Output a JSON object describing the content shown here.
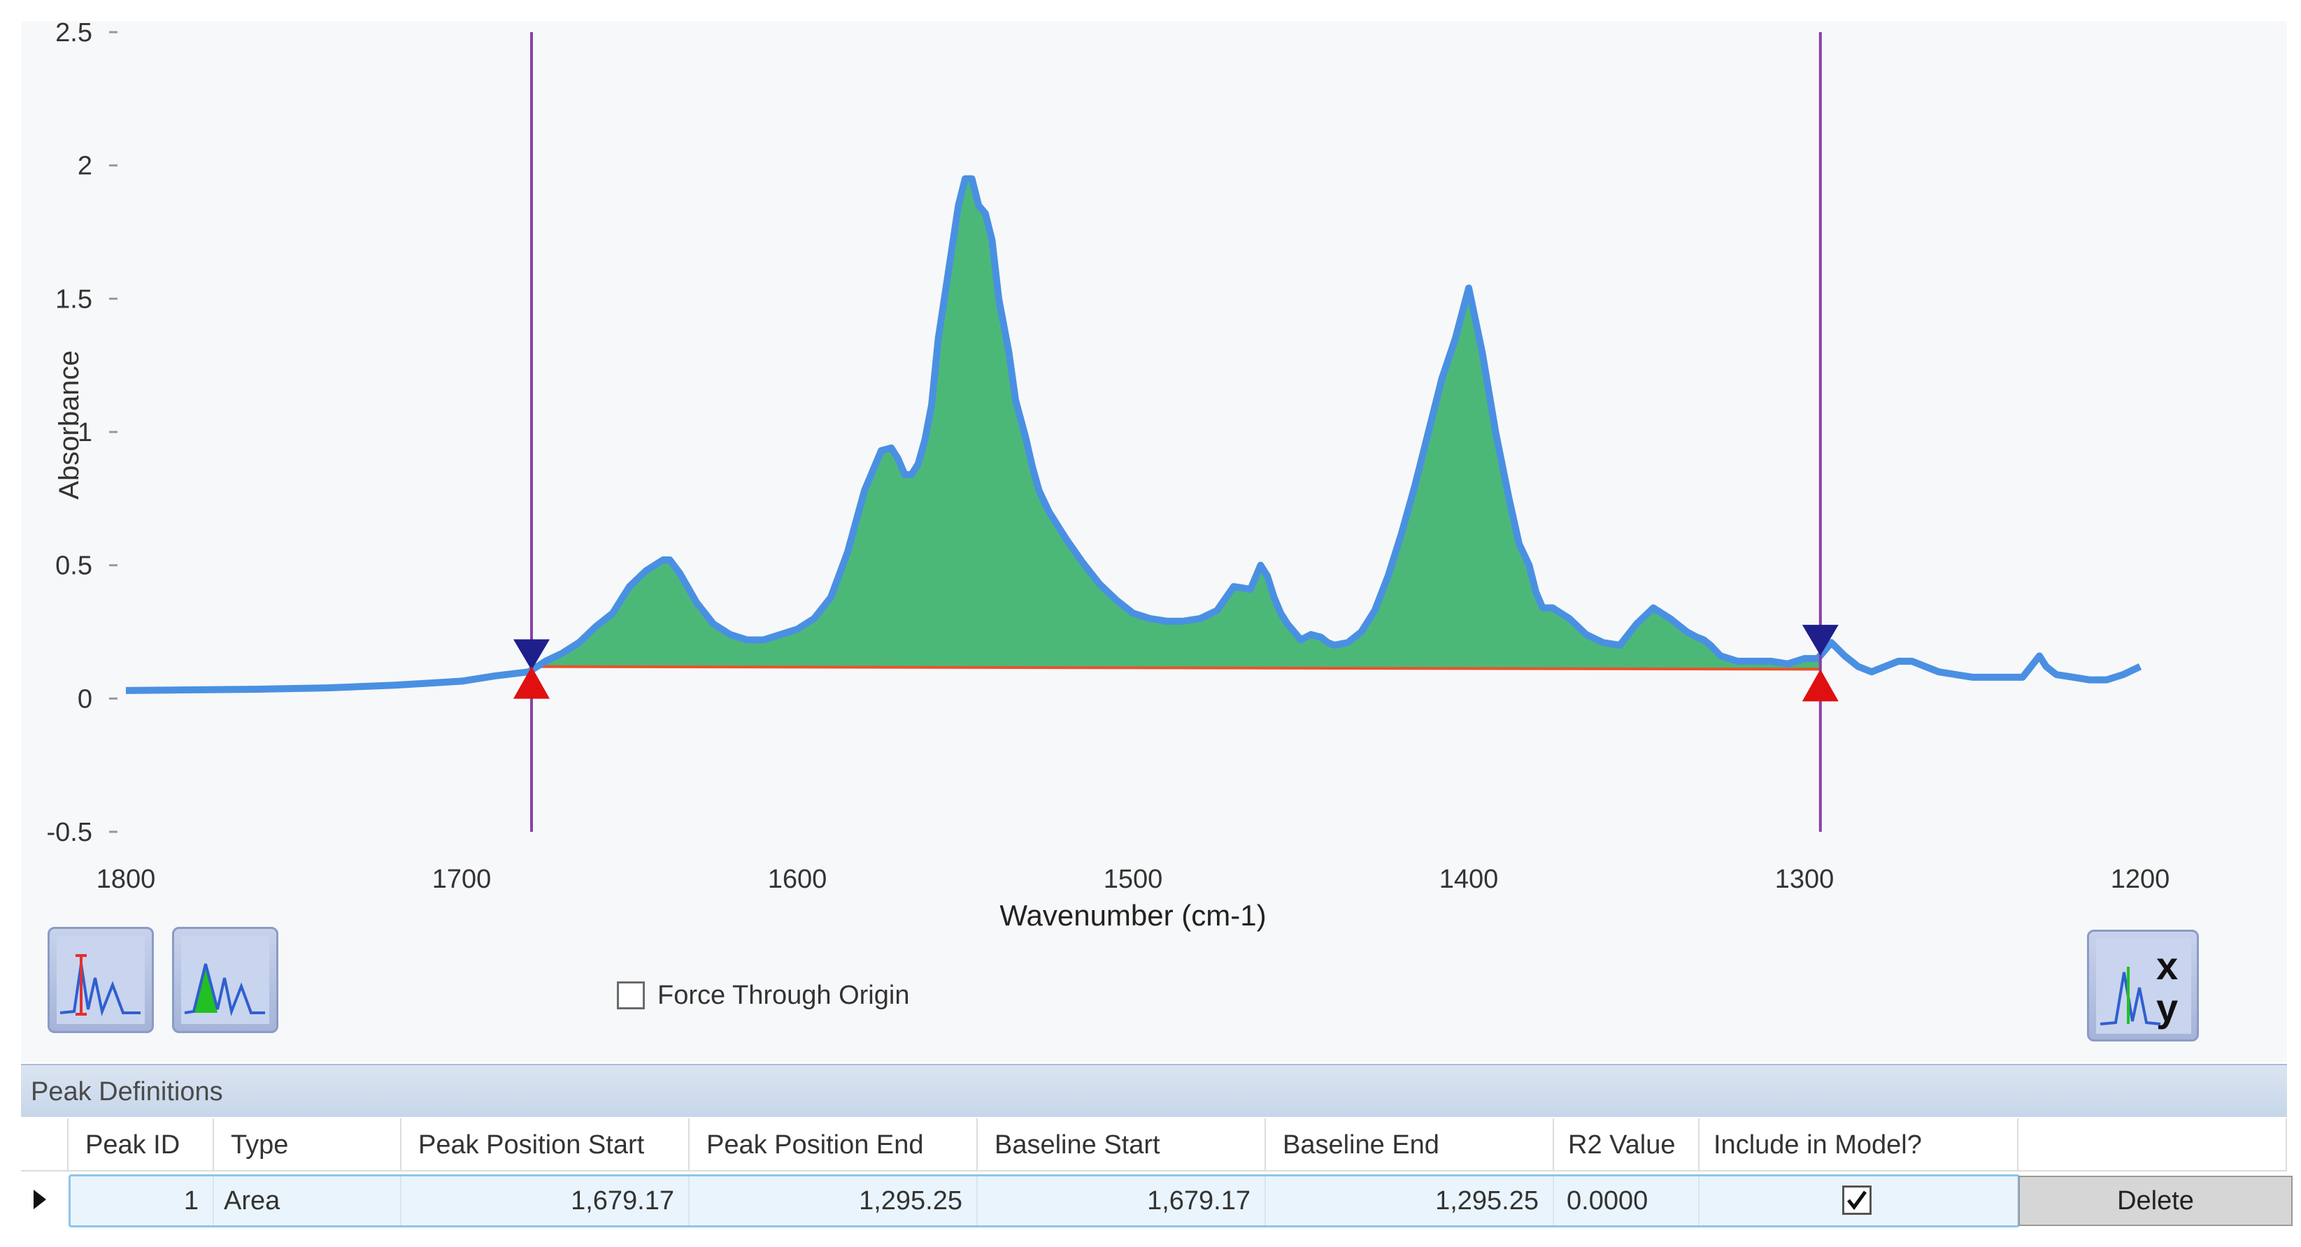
{
  "chart_data": {
    "type": "line",
    "xlabel": "Wavenumber (cm-1)",
    "ylabel": "Absorbance",
    "xlim": [
      1800,
      1200
    ],
    "ylim": [
      -0.5,
      2.5
    ],
    "x_ticks": [
      "1800",
      "1700",
      "1600",
      "1500",
      "1400",
      "1300",
      "1200"
    ],
    "y_ticks": [
      "2.5",
      "2",
      "1.5",
      "1",
      "0.5",
      "0",
      "-0.5"
    ],
    "grid": false,
    "series": [
      {
        "color": "#4a90e2",
        "x": [
          1800,
          1760,
          1740,
          1720,
          1700,
          1690,
          1680,
          1675,
          1670,
          1665,
          1660,
          1655,
          1650,
          1645,
          1640,
          1638,
          1635,
          1630,
          1625,
          1620,
          1615,
          1610,
          1600,
          1595,
          1590,
          1585,
          1580,
          1575,
          1572,
          1570,
          1568,
          1566,
          1564,
          1562,
          1560,
          1558,
          1555,
          1552,
          1550,
          1548,
          1546,
          1544,
          1542,
          1540,
          1537,
          1535,
          1532,
          1530,
          1528,
          1525,
          1520,
          1515,
          1510,
          1505,
          1500,
          1495,
          1490,
          1485,
          1480,
          1475,
          1470,
          1465,
          1462,
          1460,
          1458,
          1456,
          1454,
          1452,
          1450,
          1447,
          1444,
          1442,
          1440,
          1436,
          1432,
          1428,
          1424,
          1420,
          1416,
          1412,
          1408,
          1404,
          1400,
          1396,
          1392,
          1388,
          1385,
          1382,
          1380,
          1378,
          1375,
          1370,
          1365,
          1360,
          1355,
          1350,
          1345,
          1340,
          1335,
          1332,
          1330,
          1328,
          1325,
          1320,
          1315,
          1310,
          1305,
          1300,
          1296,
          1292,
          1288,
          1284,
          1280,
          1276,
          1272,
          1268,
          1264,
          1260,
          1255,
          1250,
          1245,
          1240,
          1235,
          1230,
          1228,
          1225,
          1220,
          1215,
          1210,
          1205,
          1200
        ],
        "y": [
          0.03,
          0.035,
          0.04,
          0.05,
          0.065,
          0.085,
          0.1,
          0.14,
          0.17,
          0.21,
          0.27,
          0.32,
          0.42,
          0.48,
          0.52,
          0.52,
          0.47,
          0.36,
          0.28,
          0.24,
          0.22,
          0.22,
          0.26,
          0.3,
          0.38,
          0.55,
          0.78,
          0.93,
          0.94,
          0.9,
          0.84,
          0.84,
          0.88,
          0.97,
          1.1,
          1.35,
          1.6,
          1.85,
          1.95,
          1.95,
          1.85,
          1.82,
          1.72,
          1.5,
          1.3,
          1.12,
          0.98,
          0.87,
          0.78,
          0.7,
          0.6,
          0.51,
          0.43,
          0.37,
          0.32,
          0.3,
          0.29,
          0.29,
          0.3,
          0.33,
          0.42,
          0.41,
          0.5,
          0.46,
          0.38,
          0.32,
          0.28,
          0.25,
          0.22,
          0.24,
          0.23,
          0.21,
          0.2,
          0.21,
          0.25,
          0.33,
          0.46,
          0.62,
          0.8,
          1.0,
          1.2,
          1.35,
          1.54,
          1.3,
          1.0,
          0.75,
          0.58,
          0.5,
          0.4,
          0.34,
          0.34,
          0.3,
          0.24,
          0.21,
          0.2,
          0.28,
          0.34,
          0.3,
          0.25,
          0.23,
          0.22,
          0.2,
          0.16,
          0.14,
          0.14,
          0.14,
          0.13,
          0.15,
          0.15,
          0.21,
          0.16,
          0.12,
          0.1,
          0.12,
          0.14,
          0.14,
          0.12,
          0.1,
          0.09,
          0.08,
          0.08,
          0.08,
          0.08,
          0.16,
          0.12,
          0.09,
          0.08,
          0.07,
          0.07,
          0.09,
          0.12
        ]
      },
      {
        "color": "#e8532a",
        "x": [
          1679.17,
          1295.25
        ],
        "y": [
          0.12,
          0.11
        ]
      }
    ],
    "region": {
      "start": 1679.17,
      "end": 1295.25,
      "fill": "#4cb878"
    }
  },
  "toolbar": {
    "peak_height_tool_icon": "peak-height-icon",
    "peak_area_tool_icon": "peak-area-icon",
    "xy_tool_icon": "xy-data-icon",
    "force_origin_label": "Force Through Origin",
    "force_origin_checked": false
  },
  "peak_definitions": {
    "title": "Peak Definitions",
    "columns": [
      "Peak ID",
      "Type",
      "Peak Position Start",
      "Peak Position End",
      "Baseline Start",
      "Baseline End",
      "R2 Value",
      "Include in Model?"
    ],
    "rows": [
      {
        "peak_id": "1",
        "type": "Area",
        "peak_position_start": "1,679.17",
        "peak_position_end": "1,295.25",
        "baseline_start": "1,679.17",
        "baseline_end": "1,295.25",
        "r2_value": "0.0000",
        "include_in_model": true,
        "delete_label": "Delete"
      }
    ]
  }
}
